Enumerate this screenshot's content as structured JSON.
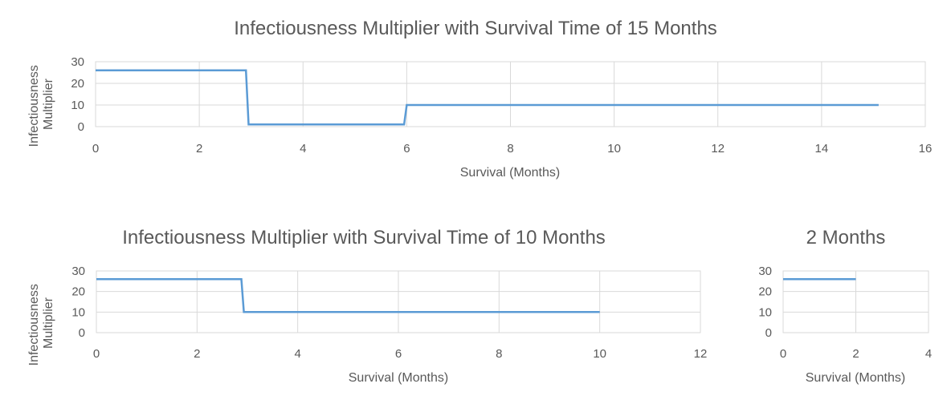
{
  "accent_color": "#5b9bd5",
  "chart_data": [
    {
      "type": "line",
      "title": "Infectiousness Multiplier with Survival Time of 15 Months",
      "xlabel": "Survival (Months)",
      "ylabel": "Infectiousness Multiplier",
      "xlim": [
        0,
        16
      ],
      "ylim": [
        0,
        30
      ],
      "x_ticks": [
        0,
        2,
        4,
        6,
        8,
        10,
        12,
        14,
        16
      ],
      "y_ticks": [
        0,
        10,
        20,
        30
      ],
      "grid": true,
      "series": [
        {
          "points": [
            [
              0,
              26
            ],
            [
              2.9,
              26
            ],
            [
              2.95,
              1
            ],
            [
              5.95,
              1
            ],
            [
              6.0,
              10
            ],
            [
              15.1,
              10
            ]
          ]
        }
      ]
    },
    {
      "type": "line",
      "title": "Infectiousness Multiplier with Survival Time of 10 Months",
      "xlabel": "Survival (Months)",
      "ylabel": "Infectiousness Multiplier",
      "xlim": [
        0,
        12
      ],
      "ylim": [
        0,
        30
      ],
      "x_ticks": [
        0,
        2,
        4,
        6,
        8,
        10,
        12
      ],
      "y_ticks": [
        0,
        10,
        20,
        30
      ],
      "grid": true,
      "series": [
        {
          "points": [
            [
              0,
              26
            ],
            [
              2.88,
              26
            ],
            [
              2.93,
              10
            ],
            [
              10,
              10
            ]
          ]
        }
      ]
    },
    {
      "type": "line",
      "title": "2 Months",
      "xlabel": "Survival (Months)",
      "ylabel": "",
      "xlim": [
        0,
        4
      ],
      "ylim": [
        0,
        30
      ],
      "x_ticks": [
        0,
        2,
        4
      ],
      "y_ticks": [
        0,
        10,
        20,
        30
      ],
      "grid": true,
      "series": [
        {
          "points": [
            [
              0,
              26
            ],
            [
              2,
              26
            ]
          ]
        }
      ]
    }
  ]
}
